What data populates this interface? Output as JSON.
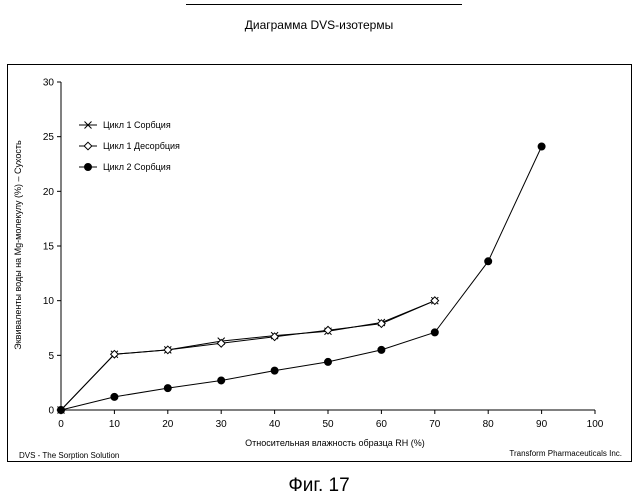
{
  "caption": "Фиг. 17",
  "footer": {
    "left": "DVS - The Sorption Solution",
    "right": "Transform Pharmaceuticals Inc."
  },
  "chart_data": {
    "type": "line",
    "title": "Диаграмма DVS-изотермы",
    "xlabel": "Относительная влажность образца RH (%)",
    "ylabel": "Эквиваленты воды на Mg-молекулу (%) – Сухость",
    "xlim": [
      0,
      100
    ],
    "ylim": [
      0,
      30
    ],
    "xticks": [
      0,
      10,
      20,
      30,
      40,
      50,
      60,
      70,
      80,
      90,
      100
    ],
    "yticks": [
      0,
      5,
      10,
      15,
      20,
      25,
      30
    ],
    "grid": false,
    "legend_position": "top-left",
    "series": [
      {
        "name": "Цикл 1 Сорбция",
        "marker": "x",
        "color": "#000000",
        "x": [
          0,
          10,
          20,
          30,
          40,
          50,
          60,
          70
        ],
        "y": [
          0,
          5.1,
          5.5,
          6.3,
          6.8,
          7.2,
          8.0,
          10.0
        ]
      },
      {
        "name": "Цикл 1 Десорбция",
        "marker": "diamond-open",
        "color": "#000000",
        "x": [
          70,
          60,
          50,
          40,
          30,
          20,
          10,
          0
        ],
        "y": [
          10.0,
          7.9,
          7.3,
          6.7,
          6.1,
          5.5,
          5.1,
          0
        ]
      },
      {
        "name": "Цикл 2 Сорбция",
        "marker": "circle-filled",
        "color": "#000000",
        "x": [
          0,
          10,
          20,
          30,
          40,
          50,
          60,
          70,
          80,
          90
        ],
        "y": [
          0,
          1.2,
          2.0,
          2.7,
          3.6,
          4.4,
          5.5,
          7.1,
          13.6,
          24.1
        ]
      }
    ]
  }
}
